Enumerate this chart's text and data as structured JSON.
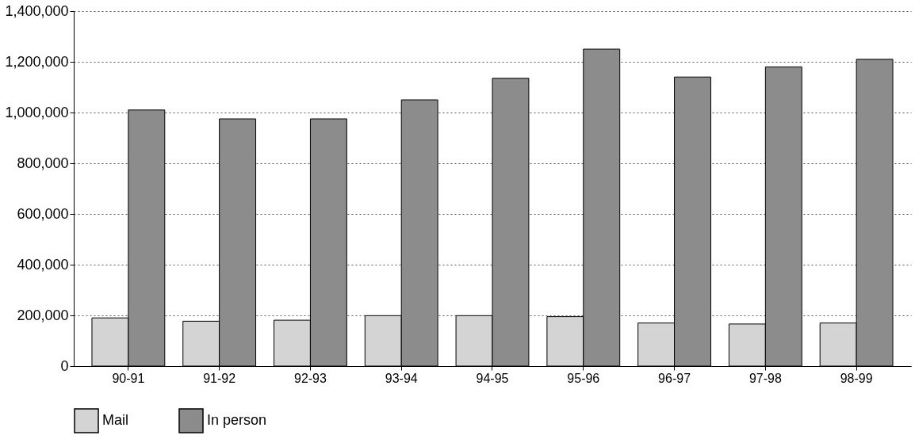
{
  "chart_data": {
    "type": "bar",
    "categories": [
      "90-91",
      "91-92",
      "92-93",
      "93-94",
      "94-95",
      "95-96",
      "96-97",
      "97-98",
      "98-99"
    ],
    "series": [
      {
        "name": "Mail",
        "color": "#d4d4d4",
        "values": [
          190000,
          177000,
          181000,
          199000,
          199000,
          195000,
          170000,
          166000,
          170000
        ]
      },
      {
        "name": "In person",
        "color": "#8c8c8c",
        "values": [
          1010000,
          975000,
          975000,
          1050000,
          1135000,
          1250000,
          1140000,
          1180000,
          1210000
        ]
      }
    ],
    "ylim": [
      0,
      1400000
    ],
    "yticks": [
      0,
      {
        "value": 200000,
        "label": "200,000"
      },
      {
        "value": 400000,
        "label": "400,000"
      },
      {
        "value": 600000,
        "label": "600,000"
      },
      {
        "value": 800000,
        "label": "800,000"
      },
      {
        "value": 1000000,
        "label": "1,000,000"
      },
      {
        "value": 1200000,
        "label": "1,200,000"
      },
      {
        "value": 1400000,
        "label": "1,400,000"
      }
    ],
    "grid": "y",
    "legend": "bottom"
  }
}
